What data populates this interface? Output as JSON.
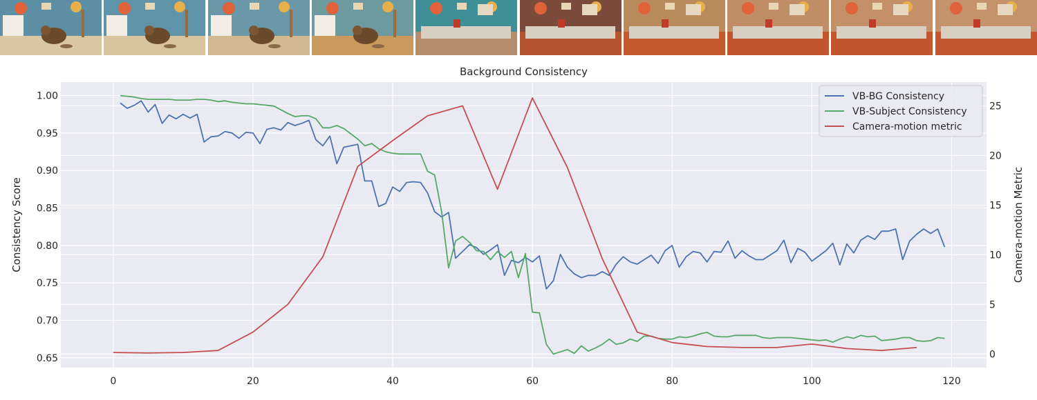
{
  "filmstrip": {
    "frames": [
      {
        "scene": "cat",
        "wall": "#5c8fa3",
        "floor": "#d9c7a3"
      },
      {
        "scene": "cat",
        "wall": "#5f94a8",
        "floor": "#d8c49f"
      },
      {
        "scene": "cat",
        "wall": "#6a98a9",
        "floor": "#d3b98f"
      },
      {
        "scene": "cat",
        "wall": "#6c9a9f",
        "floor": "#c99a5b"
      },
      {
        "scene": "room",
        "wall": "#3f8f97",
        "floor": "#b58d6a"
      },
      {
        "scene": "room",
        "wall": "#7a4a3a",
        "floor": "#b5552f"
      },
      {
        "scene": "room",
        "wall": "#b98a5c",
        "floor": "#c65a2f"
      },
      {
        "scene": "room",
        "wall": "#c08e66",
        "floor": "#c2552c"
      },
      {
        "scene": "room",
        "wall": "#c39069",
        "floor": "#c3562d"
      },
      {
        "scene": "room",
        "wall": "#c4926b",
        "floor": "#c4572e"
      }
    ]
  },
  "chart_data": {
    "type": "line",
    "title": "Background Consistency",
    "ylabel": "Consistency Score",
    "y2label": "Camera-motion Metric",
    "xlabel": "",
    "xlim": [
      -7.5,
      125
    ],
    "ylim": [
      0.637,
      1.018
    ],
    "y2lim": [
      -1.37,
      27.4
    ],
    "xticks": [
      "0",
      "20",
      "40",
      "60",
      "80",
      "100",
      "120"
    ],
    "yticks": [
      "0.65",
      "0.70",
      "0.75",
      "0.80",
      "0.85",
      "0.90",
      "0.95",
      "1.00"
    ],
    "y2ticks": [
      "0",
      "5",
      "10",
      "15",
      "20",
      "25"
    ],
    "grid": true,
    "legend_position": "top-right",
    "series": [
      {
        "name": "VB-BG Consistency",
        "axis": "left",
        "color": "#4c72b0",
        "x": [
          1,
          2,
          3,
          4,
          5,
          6,
          7,
          8,
          9,
          10,
          11,
          12,
          13,
          14,
          15,
          16,
          17,
          18,
          19,
          20,
          21,
          22,
          23,
          24,
          25,
          26,
          27,
          28,
          29,
          30,
          31,
          32,
          33,
          34,
          35,
          36,
          37,
          38,
          39,
          40,
          41,
          42,
          43,
          44,
          45,
          46,
          47,
          48,
          49,
          50,
          51,
          52,
          53,
          54,
          55,
          56,
          57,
          58,
          59,
          60,
          61,
          62,
          63,
          64,
          65,
          66,
          67,
          68,
          69,
          70,
          71,
          72,
          73,
          74,
          75,
          76,
          77,
          78,
          79,
          80,
          81,
          82,
          83,
          84,
          85,
          86,
          87,
          88,
          89,
          90,
          91,
          92,
          93,
          94,
          95,
          96,
          97,
          98,
          99,
          100,
          101,
          102,
          103,
          104,
          105,
          106,
          107,
          108,
          109,
          110,
          111,
          112,
          113,
          114,
          115,
          116,
          117,
          118,
          119
        ],
        "y": [
          0.99,
          0.983,
          0.987,
          0.993,
          0.978,
          0.988,
          0.963,
          0.974,
          0.969,
          0.975,
          0.97,
          0.975,
          0.938,
          0.945,
          0.946,
          0.952,
          0.95,
          0.943,
          0.951,
          0.95,
          0.936,
          0.955,
          0.957,
          0.954,
          0.964,
          0.96,
          0.963,
          0.967,
          0.941,
          0.933,
          0.946,
          0.909,
          0.931,
          0.933,
          0.935,
          0.886,
          0.886,
          0.852,
          0.856,
          0.878,
          0.872,
          0.884,
          0.885,
          0.884,
          0.87,
          0.845,
          0.838,
          0.844,
          0.783,
          0.792,
          0.801,
          0.797,
          0.788,
          0.794,
          0.801,
          0.76,
          0.78,
          0.777,
          0.784,
          0.778,
          0.786,
          0.742,
          0.753,
          0.788,
          0.771,
          0.762,
          0.757,
          0.76,
          0.76,
          0.765,
          0.76,
          0.775,
          0.785,
          0.778,
          0.775,
          0.781,
          0.787,
          0.776,
          0.793,
          0.8,
          0.771,
          0.785,
          0.792,
          0.79,
          0.778,
          0.792,
          0.791,
          0.806,
          0.783,
          0.793,
          0.786,
          0.781,
          0.781,
          0.787,
          0.793,
          0.807,
          0.777,
          0.796,
          0.791,
          0.779,
          0.786,
          0.793,
          0.803,
          0.774,
          0.802,
          0.79,
          0.807,
          0.813,
          0.808,
          0.819,
          0.819,
          0.822,
          0.781,
          0.806,
          0.815,
          0.822,
          0.816,
          0.822,
          0.798
        ]
      },
      {
        "name": "VB-Subject Consistency",
        "axis": "left",
        "color": "#55a868",
        "x": [
          1,
          2,
          3,
          4,
          5,
          6,
          7,
          8,
          9,
          10,
          11,
          12,
          13,
          14,
          15,
          16,
          17,
          18,
          19,
          20,
          21,
          22,
          23,
          24,
          25,
          26,
          27,
          28,
          29,
          30,
          31,
          32,
          33,
          34,
          35,
          36,
          37,
          38,
          39,
          40,
          41,
          42,
          43,
          44,
          45,
          46,
          47,
          48,
          49,
          50,
          51,
          52,
          53,
          54,
          55,
          56,
          57,
          58,
          59,
          60,
          61,
          62,
          63,
          64,
          65,
          66,
          67,
          68,
          69,
          70,
          71,
          72,
          73,
          74,
          75,
          76,
          77,
          78,
          79,
          80,
          81,
          82,
          83,
          84,
          85,
          86,
          87,
          88,
          89,
          90,
          91,
          92,
          93,
          94,
          95,
          96,
          97,
          98,
          99,
          100,
          101,
          102,
          103,
          104,
          105,
          106,
          107,
          108,
          109,
          110,
          111,
          112,
          113,
          114,
          115,
          116,
          117,
          118,
          119
        ],
        "y": [
          1.0,
          0.999,
          0.998,
          0.996,
          0.995,
          0.995,
          0.995,
          0.995,
          0.994,
          0.994,
          0.994,
          0.995,
          0.995,
          0.994,
          0.992,
          0.993,
          0.991,
          0.99,
          0.989,
          0.989,
          0.988,
          0.987,
          0.986,
          0.981,
          0.976,
          0.972,
          0.973,
          0.973,
          0.969,
          0.957,
          0.957,
          0.96,
          0.956,
          0.949,
          0.942,
          0.933,
          0.936,
          0.929,
          0.925,
          0.923,
          0.922,
          0.922,
          0.922,
          0.922,
          0.899,
          0.894,
          0.845,
          0.77,
          0.806,
          0.812,
          0.804,
          0.793,
          0.792,
          0.781,
          0.792,
          0.784,
          0.792,
          0.757,
          0.789,
          0.711,
          0.71,
          0.668,
          0.655,
          0.658,
          0.661,
          0.656,
          0.666,
          0.659,
          0.663,
          0.668,
          0.675,
          0.668,
          0.67,
          0.675,
          0.672,
          0.679,
          0.679,
          0.676,
          0.675,
          0.675,
          0.678,
          0.677,
          0.679,
          0.682,
          0.684,
          0.679,
          0.678,
          0.678,
          0.68,
          0.68,
          0.68,
          0.68,
          0.677,
          0.676,
          0.677,
          0.677,
          0.677,
          0.676,
          0.675,
          0.674,
          0.673,
          0.674,
          0.671,
          0.675,
          0.678,
          0.676,
          0.68,
          0.678,
          0.679,
          0.673,
          0.674,
          0.675,
          0.677,
          0.677,
          0.673,
          0.672,
          0.673,
          0.677,
          0.676
        ]
      },
      {
        "name": "Camera-motion metric",
        "axis": "right",
        "color": "#c44e52",
        "x": [
          0,
          5,
          10,
          15,
          20,
          25,
          30,
          35,
          40,
          45,
          50,
          55,
          60,
          65,
          70,
          75,
          80,
          85,
          90,
          95,
          100,
          105,
          110,
          115
        ],
        "y": [
          0.15,
          0.1,
          0.15,
          0.35,
          2.2,
          5.0,
          9.8,
          18.9,
          21.5,
          24.0,
          25.0,
          16.6,
          25.8,
          18.8,
          9.6,
          2.2,
          1.15,
          0.75,
          0.65,
          0.65,
          1.0,
          0.55,
          0.35,
          0.65
        ]
      }
    ]
  }
}
